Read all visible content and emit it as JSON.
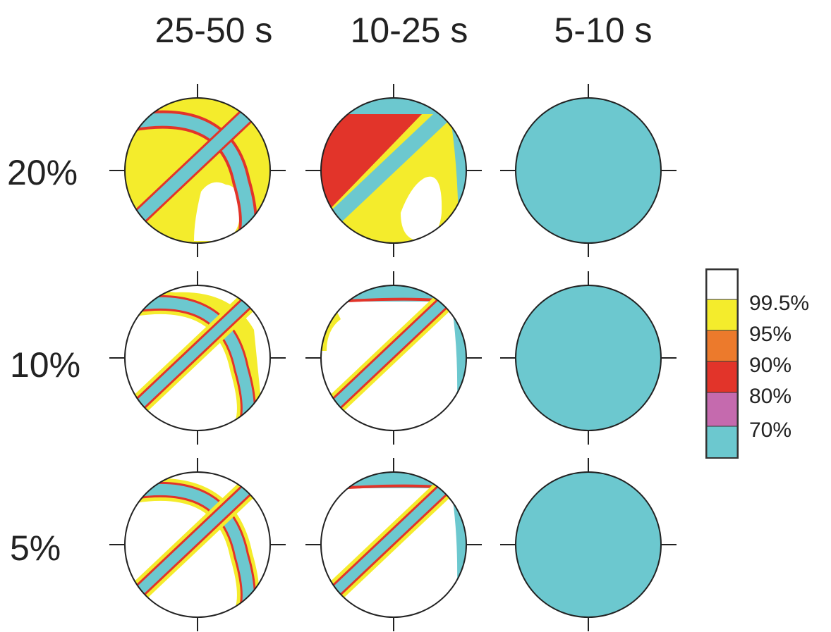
{
  "columns": [
    {
      "label": "25-50 s"
    },
    {
      "label": "10-25 s"
    },
    {
      "label": "5-10 s"
    }
  ],
  "rows": [
    {
      "label": "20%"
    },
    {
      "label": "10%"
    },
    {
      "label": "5%"
    }
  ],
  "legend": {
    "levels": [
      {
        "label": "99.5%",
        "color": "#ffffff"
      },
      {
        "label": "95%",
        "color": "#f4ec2c"
      },
      {
        "label": "90%",
        "color": "#ec7a2c"
      },
      {
        "label": "80%",
        "color": "#e2342a"
      },
      {
        "label": "70%",
        "color": "#c56aae"
      },
      {
        "label": "",
        "color": "#6cc8cf"
      }
    ]
  },
  "colors": {
    "cyan": "#6cc8cf",
    "yellow": "#f4ec2c",
    "red": "#e2342a",
    "magenta": "#c56aae",
    "orange": "#ec7a2c",
    "white": "#ffffff"
  }
}
